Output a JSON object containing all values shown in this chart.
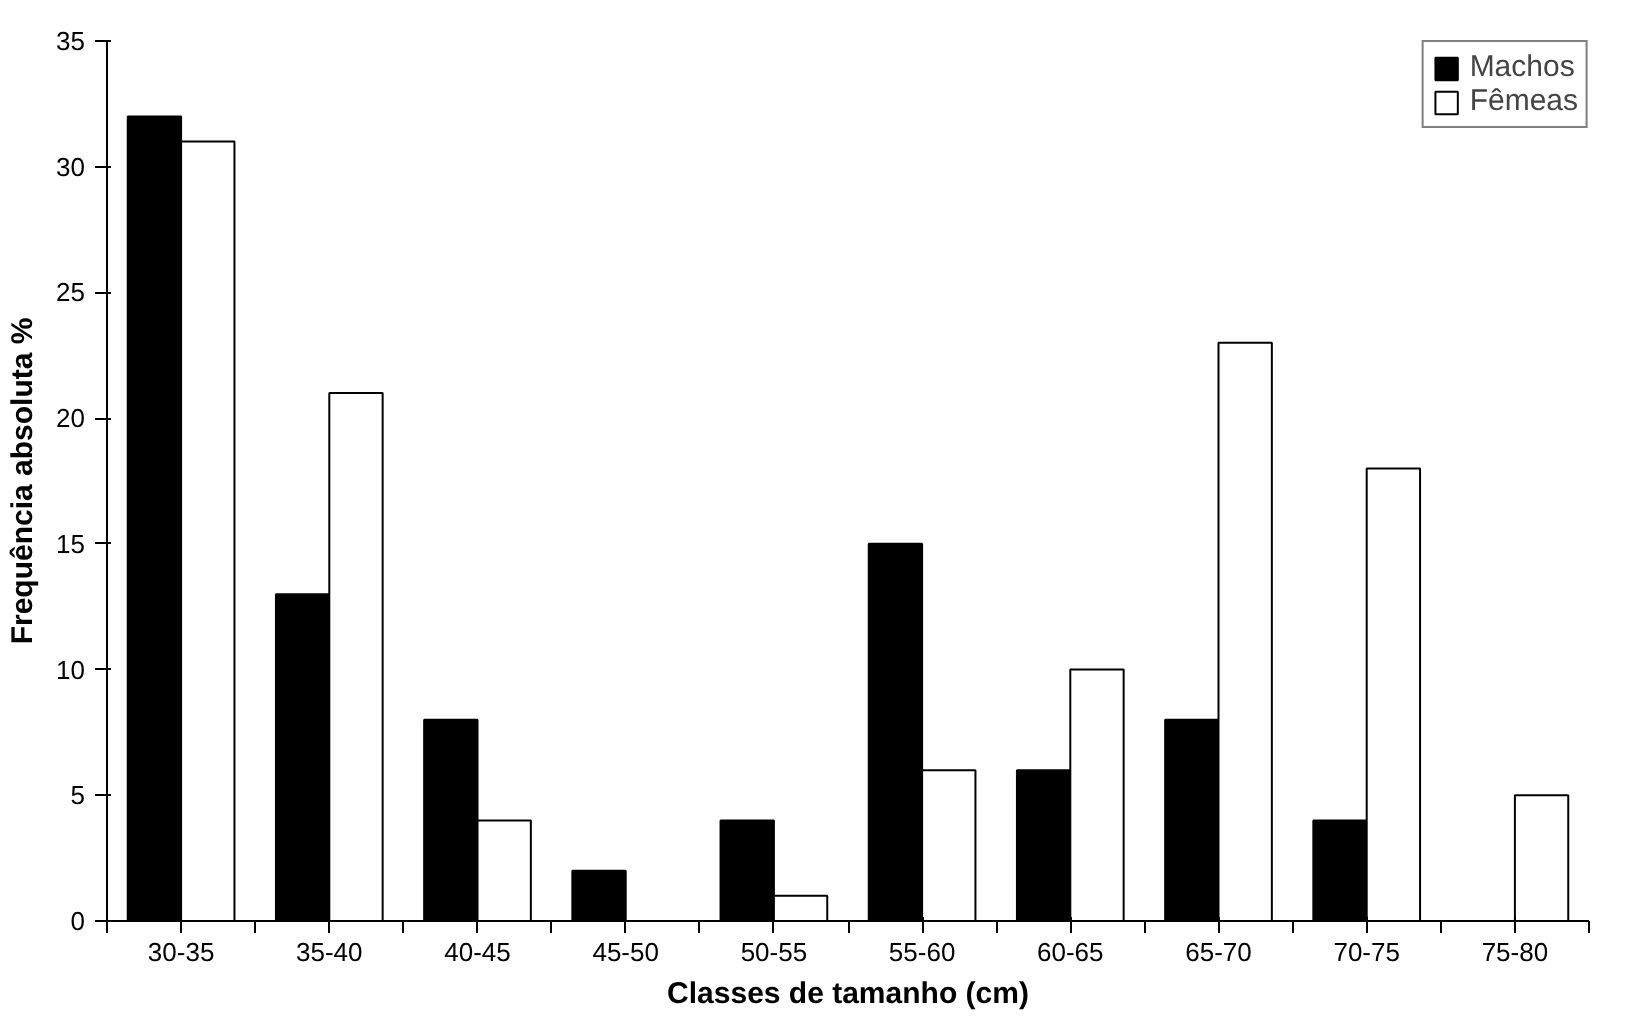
{
  "chart_data": {
    "type": "bar",
    "xlabel": "Classes de tamanho (cm)",
    "ylabel": "Frequência absoluta %",
    "categories": [
      "30-35",
      "35-40",
      "40-45",
      "45-50",
      "50-55",
      "55-60",
      "60-65",
      "65-70",
      "70-75",
      "75-80"
    ],
    "series": [
      {
        "name": "Machos",
        "color": "#000000",
        "values": [
          32,
          13,
          8,
          2,
          4,
          15,
          6,
          8,
          4,
          null
        ]
      },
      {
        "name": "Fêmeas",
        "color": "#ffffff",
        "values": [
          31,
          21,
          4,
          null,
          1,
          6,
          10,
          23,
          18,
          5
        ]
      }
    ],
    "ylim": [
      0,
      35
    ],
    "yticks": [
      0,
      5,
      10,
      15,
      20,
      25,
      30,
      35
    ],
    "grid": false,
    "legend": "top right"
  }
}
